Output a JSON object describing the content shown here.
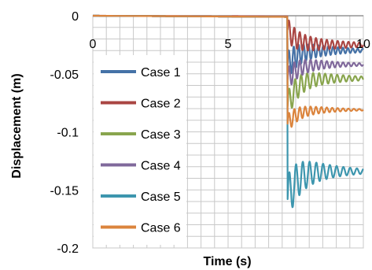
{
  "chart_data": {
    "type": "line",
    "title": "",
    "xlabel": "Time (s)",
    "ylabel": "Displacement (m)",
    "xlim": [
      0,
      10
    ],
    "ylim": [
      -0.2,
      0
    ],
    "xticks": [
      0,
      5,
      10
    ],
    "yticks": [
      0,
      -0.05,
      -0.1,
      -0.15,
      -0.2
    ],
    "xtick_labels": [
      "0",
      "5",
      "10"
    ],
    "ytick_labels": [
      "0",
      "-0.05",
      "-0.1",
      "-0.15",
      "-0.2"
    ],
    "grid": true,
    "legend_position": "left",
    "series": [
      {
        "name": "Case 1",
        "color": "#4572A7",
        "pre_step": -0.001,
        "step_time": 7.2,
        "peak": -0.043,
        "final": -0.03,
        "amp": 0.012,
        "freq": 5.5,
        "decay": 0.75
      },
      {
        "name": "Case 2",
        "color": "#AA4643",
        "pre_step": -0.0005,
        "step_time": 7.2,
        "peak": -0.012,
        "final": -0.025,
        "amp": 0.01,
        "freq": 5.0,
        "decay": 0.6
      },
      {
        "name": "Case 3",
        "color": "#89A54E",
        "pre_step": -0.001,
        "step_time": 7.2,
        "peak": -0.078,
        "final": -0.054,
        "amp": 0.012,
        "freq": 4.5,
        "decay": 0.7
      },
      {
        "name": "Case 4",
        "color": "#80699B",
        "pre_step": -0.001,
        "step_time": 7.2,
        "peak": -0.055,
        "final": -0.042,
        "amp": 0.01,
        "freq": 5.0,
        "decay": 0.8
      },
      {
        "name": "Case 5",
        "color": "#3D96AE",
        "pre_step": -0.001,
        "step_time": 7.2,
        "peak": -0.158,
        "final": -0.134,
        "amp": 0.02,
        "freq": 4.0,
        "decay": 0.8
      },
      {
        "name": "Case 6",
        "color": "#DB843D",
        "pre_step": -0.001,
        "step_time": 7.2,
        "peak": -0.093,
        "final": -0.081,
        "amp": 0.008,
        "freq": 5.0,
        "decay": 0.9
      }
    ]
  }
}
